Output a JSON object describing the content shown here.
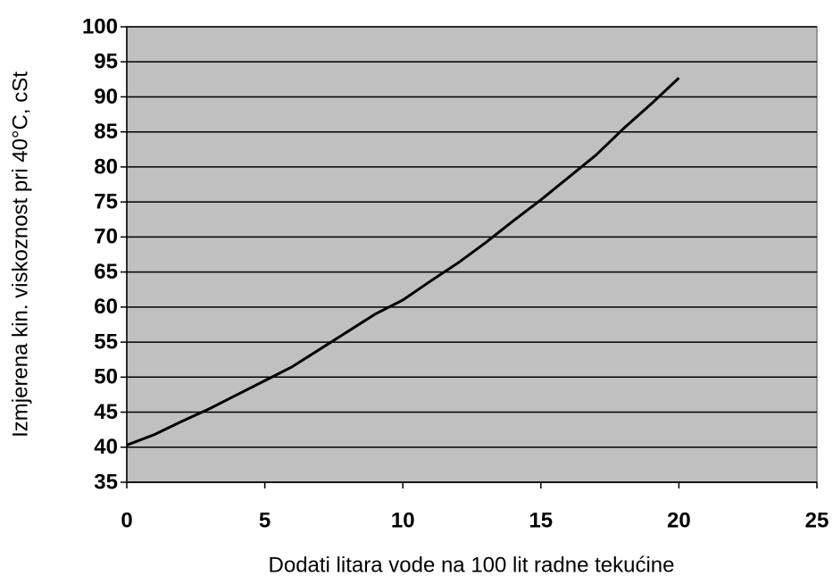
{
  "chart_data": {
    "type": "line",
    "xlabel": "Dodati litara vode na 100 lit radne tekućine",
    "ylabel": "Izmjerena kin. viskoznost pri 40°C, cSt",
    "x": [
      0,
      1,
      2,
      3,
      4,
      5,
      6,
      7,
      8,
      9,
      10,
      11,
      12,
      13,
      14,
      15,
      16,
      17,
      18,
      19,
      20
    ],
    "series": [
      {
        "name": "viskoznost",
        "color": "#000000",
        "values": [
          40.3,
          41.8,
          43.7,
          45.5,
          47.5,
          49.5,
          51.5,
          54,
          56.5,
          59,
          61,
          63.7,
          66.3,
          69.2,
          72.3,
          75.3,
          78.5,
          81.7,
          85.5,
          89,
          92.7
        ]
      }
    ],
    "xlim": [
      0,
      25
    ],
    "xticks": [
      0,
      5,
      10,
      15,
      20,
      25
    ],
    "ylim": [
      35,
      100
    ],
    "yticks": [
      35,
      40,
      45,
      50,
      55,
      60,
      65,
      70,
      75,
      80,
      85,
      90,
      95,
      100
    ],
    "grid": true,
    "plot_background": "#c0c0c0"
  }
}
